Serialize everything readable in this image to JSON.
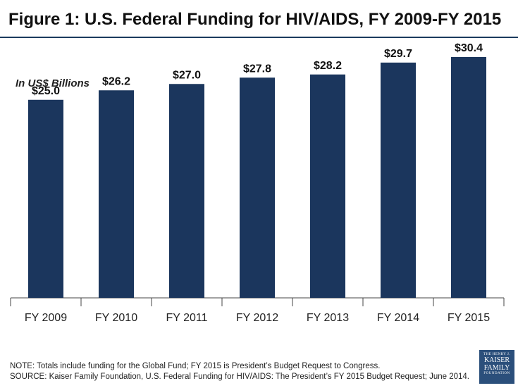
{
  "header": {
    "title": "Figure 1: U.S. Federal Funding for HIV/AIDS, FY 2009-FY 2015"
  },
  "chart_data": {
    "type": "bar",
    "categories": [
      "FY 2009",
      "FY 2010",
      "FY 2011",
      "FY 2012",
      "FY 2013",
      "FY 2014",
      "FY 2015"
    ],
    "values": [
      25.0,
      26.2,
      27.0,
      27.8,
      28.2,
      29.7,
      30.4
    ],
    "data_labels": [
      "$25.0",
      "$26.2",
      "$27.0",
      "$27.8",
      "$28.2",
      "$29.7",
      "$30.4"
    ],
    "title": "",
    "units_label": "In US$ Billions",
    "xlabel": "",
    "ylabel": "",
    "ylim": [
      0,
      32
    ],
    "grid": false,
    "bar_color": "#1b365d"
  },
  "footer": {
    "note": "NOTE: Totals include funding for the Global Fund; FY 2015 is President’s Budget Request to Congress.",
    "source": "SOURCE: Kaiser Family Foundation, U.S. Federal Funding for HIV/AIDS: The President’s FY 2015 Budget Request; June 2014."
  },
  "logo": {
    "line1": "THE HENRY J.",
    "line2": "KAISER",
    "line3": "FAMILY",
    "line4": "FOUNDATION"
  },
  "colors": {
    "accent": "#1b365d",
    "rule": "#1b3a5e",
    "logo_bg": "#2b4f7b"
  }
}
